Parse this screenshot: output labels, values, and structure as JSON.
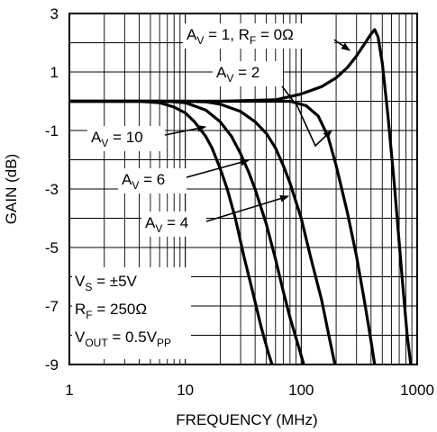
{
  "chart_data": {
    "type": "line",
    "xlabel": "FREQUENCY (MHz)",
    "ylabel": "GAIN (dB)",
    "x_scale": "log",
    "xlim": [
      1,
      1000
    ],
    "ylim": [
      -9,
      3
    ],
    "x_ticks": [
      {
        "value": 1,
        "label": "1"
      },
      {
        "value": 10,
        "label": "10"
      },
      {
        "value": 100,
        "label": "100"
      },
      {
        "value": 1000,
        "label": "1000"
      }
    ],
    "y_ticks": [
      {
        "value": 3,
        "label": "3"
      },
      {
        "value": 1,
        "label": "1"
      },
      {
        "value": -1,
        "label": "-1"
      },
      {
        "value": -3,
        "label": "-3"
      },
      {
        "value": -5,
        "label": "-5"
      },
      {
        "value": -7,
        "label": "-7"
      },
      {
        "value": -9,
        "label": "-9"
      }
    ],
    "grid": true,
    "series": [
      {
        "name": "AV = 1, RF = 0Ω",
        "points": [
          [
            1,
            0
          ],
          [
            20,
            0
          ],
          [
            60,
            0.05
          ],
          [
            100,
            0.25
          ],
          [
            150,
            0.5
          ],
          [
            200,
            0.8
          ],
          [
            250,
            1.15
          ],
          [
            300,
            1.55
          ],
          [
            350,
            1.95
          ],
          [
            400,
            2.3
          ],
          [
            430,
            2.45
          ],
          [
            460,
            2.2
          ],
          [
            500,
            1.3
          ],
          [
            560,
            -0.5
          ],
          [
            640,
            -3
          ],
          [
            740,
            -6
          ],
          [
            820,
            -8
          ],
          [
            880,
            -9
          ]
        ]
      },
      {
        "name": "AV = 2",
        "points": [
          [
            1,
            0
          ],
          [
            40,
            0
          ],
          [
            80,
            0
          ],
          [
            110,
            -0.15
          ],
          [
            140,
            -0.5
          ],
          [
            170,
            -1.2
          ],
          [
            200,
            -2.2
          ],
          [
            250,
            -3.8
          ],
          [
            300,
            -5.3
          ],
          [
            350,
            -6.8
          ],
          [
            400,
            -8.2
          ],
          [
            430,
            -9
          ]
        ]
      },
      {
        "name": "AV = 4",
        "points": [
          [
            1,
            0
          ],
          [
            10,
            0
          ],
          [
            15,
            -0.02
          ],
          [
            20,
            -0.1
          ],
          [
            30,
            -0.35
          ],
          [
            40,
            -0.7
          ],
          [
            50,
            -1.1
          ],
          [
            60,
            -1.6
          ],
          [
            70,
            -2.2
          ],
          [
            80,
            -2.8
          ],
          [
            100,
            -4.0
          ],
          [
            120,
            -5.3
          ],
          [
            150,
            -6.8
          ],
          [
            175,
            -8.1
          ],
          [
            195,
            -9
          ]
        ]
      },
      {
        "name": "AV = 6",
        "points": [
          [
            1,
            0
          ],
          [
            7,
            0
          ],
          [
            10,
            -0.05
          ],
          [
            15,
            -0.3
          ],
          [
            20,
            -0.7
          ],
          [
            25,
            -1.2
          ],
          [
            30,
            -1.8
          ],
          [
            35,
            -2.4
          ],
          [
            40,
            -3.0
          ],
          [
            50,
            -4.2
          ],
          [
            60,
            -5.4
          ],
          [
            70,
            -6.5
          ],
          [
            80,
            -7.4
          ],
          [
            95,
            -8.4
          ],
          [
            105,
            -9
          ]
        ]
      },
      {
        "name": "AV = 10",
        "points": [
          [
            1,
            0
          ],
          [
            4,
            0
          ],
          [
            6,
            -0.05
          ],
          [
            8,
            -0.2
          ],
          [
            10,
            -0.4
          ],
          [
            12,
            -0.7
          ],
          [
            15,
            -1.2
          ],
          [
            17,
            -1.6
          ],
          [
            20,
            -2.3
          ],
          [
            23,
            -3.0
          ],
          [
            27,
            -4.0
          ],
          [
            32,
            -5.3
          ],
          [
            38,
            -6.5
          ],
          [
            45,
            -7.7
          ],
          [
            52,
            -8.6
          ],
          [
            56,
            -9
          ]
        ]
      }
    ],
    "annotations": [
      {
        "id": "av1",
        "main": "A",
        "sub1": "V",
        "mid": " = 1, R",
        "sub2": "F",
        "tail": " = 0Ω",
        "x": 220,
        "y": 2.1,
        "target": [
          340,
          1.7
        ],
        "textpos": [
          207,
          44
        ],
        "anchor": "start"
      },
      {
        "id": "av2",
        "main": "A",
        "sub1": "V",
        "tail": " = 2",
        "x": 320,
        "y": 0.4,
        "target": [
          210,
          -1.35
        ],
        "textpos": [
          240,
          86
        ],
        "anchor": "start"
      },
      {
        "id": "av10",
        "main": "A",
        "sub1": "V",
        "tail": " = 10",
        "textpos": [
          101,
          158
        ],
        "anchor": "start"
      },
      {
        "id": "av6",
        "main": "A",
        "sub1": "V",
        "tail": " = 6",
        "textpos": [
          135,
          205
        ],
        "anchor": "start"
      },
      {
        "id": "av4",
        "main": "A",
        "sub1": "V",
        "tail": " = 4",
        "textpos": [
          161,
          253
        ],
        "anchor": "start"
      }
    ],
    "conditions": [
      {
        "main": "V",
        "sub": "S",
        "tail": " = ±5V"
      },
      {
        "main": "R",
        "sub": "F",
        "tail": " = 250Ω"
      },
      {
        "main": "V",
        "sub": "OUT",
        "tail": " = 0.5V",
        "sub2": "PP"
      }
    ]
  }
}
